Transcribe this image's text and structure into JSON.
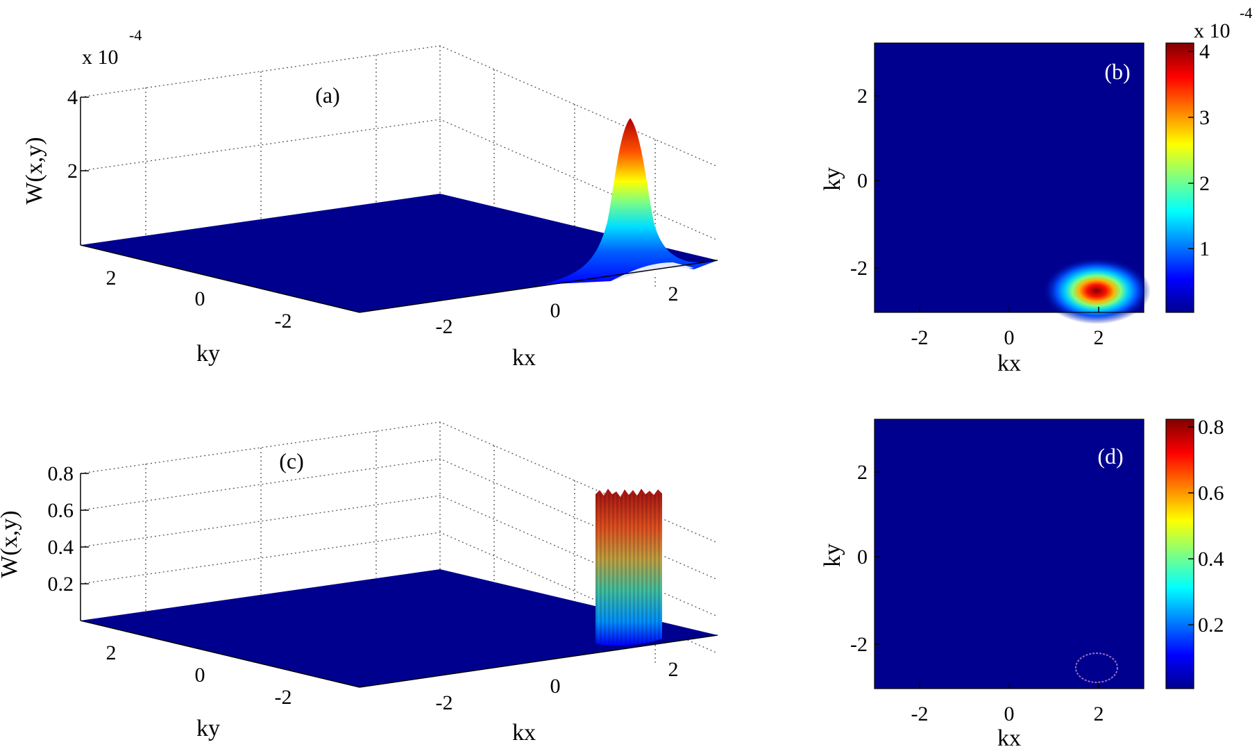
{
  "chart_data": [
    {
      "id": "a",
      "type": "surface",
      "panel_label": "(a)",
      "xlabel": "kx",
      "ylabel": "ky",
      "zlabel": "W(x,y)",
      "x_ticks": [
        "-2",
        "0",
        "2"
      ],
      "y_ticks": [
        "2",
        "0",
        "-2"
      ],
      "z_ticks": [
        "2",
        "4"
      ],
      "z_multiplier": "x 10",
      "z_multiplier_exp": "-4",
      "xlim": [
        -3,
        3
      ],
      "ylim": [
        -3,
        3
      ],
      "zlim": [
        0,
        0.0004
      ],
      "peak": {
        "kx": 2,
        "ky": -2.6,
        "height": 0.00034
      },
      "grid": true,
      "colormap": "jet"
    },
    {
      "id": "b",
      "type": "heatmap",
      "panel_label": "(b)",
      "xlabel": "kx",
      "ylabel": "ky",
      "x_ticks": [
        "-2",
        "0",
        "2"
      ],
      "y_ticks": [
        "2",
        "0",
        "-2"
      ],
      "xlim": [
        -3,
        3
      ],
      "ylim": [
        -3,
        3
      ],
      "colorbar_ticks": [
        "1",
        "2",
        "3",
        "4"
      ],
      "colorbar_multiplier": "x 10",
      "colorbar_multiplier_exp": "-4",
      "clim": [
        0,
        0.00041
      ],
      "peak": {
        "kx": 2,
        "ky": -2.6
      },
      "colormap": "jet"
    },
    {
      "id": "c",
      "type": "surface",
      "panel_label": "(c)",
      "xlabel": "kx",
      "ylabel": "ky",
      "zlabel": "W(x,y)",
      "x_ticks": [
        "-2",
        "0",
        "2"
      ],
      "y_ticks": [
        "2",
        "0",
        "-2"
      ],
      "z_ticks": [
        "0.2",
        "0.4",
        "0.6",
        "0.8"
      ],
      "xlim": [
        -3,
        3
      ],
      "ylim": [
        -3,
        3
      ],
      "zlim": [
        0,
        0.8
      ],
      "peak": {
        "kx": 2,
        "ky": -2.6,
        "height": 0.72
      },
      "grid": true,
      "colormap": "jet"
    },
    {
      "id": "d",
      "type": "heatmap",
      "panel_label": "(d)",
      "xlabel": "kx",
      "ylabel": "ky",
      "x_ticks": [
        "-2",
        "0",
        "2"
      ],
      "y_ticks": [
        "2",
        "0",
        "-2"
      ],
      "xlim": [
        -3,
        3
      ],
      "ylim": [
        -3,
        3
      ],
      "colorbar_ticks": [
        "0.2",
        "0.4",
        "0.6",
        "0.8"
      ],
      "clim": [
        0,
        0.82
      ],
      "ring": {
        "kx": 2,
        "ky": -2.6
      },
      "colormap": "jet"
    }
  ]
}
